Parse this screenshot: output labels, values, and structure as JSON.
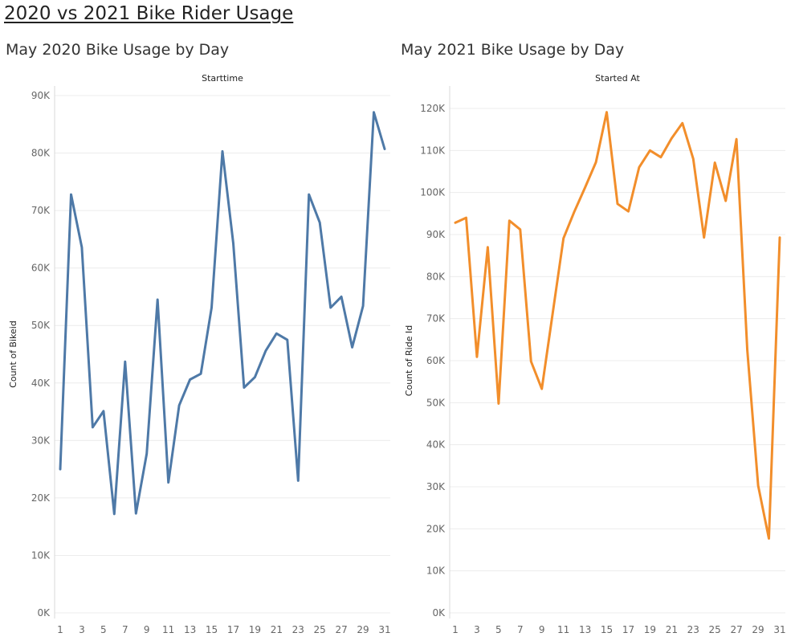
{
  "dashboard": {
    "title": "2020 vs 2021 Bike Rider Usage"
  },
  "chart_data": [
    {
      "type": "line",
      "title": "May 2020 Bike Usage by Day",
      "column_header": "Starttime",
      "ylabel": "Count of Bikeid",
      "color": "#4e79a7",
      "ylim": [
        0,
        90000
      ],
      "yticks": [
        0,
        10000,
        20000,
        30000,
        40000,
        50000,
        60000,
        70000,
        80000,
        90000
      ],
      "ytick_labels": [
        "0K",
        "10K",
        "20K",
        "30K",
        "40K",
        "50K",
        "60K",
        "70K",
        "80K",
        "90K"
      ],
      "xticks": [
        "1",
        "3",
        "5",
        "7",
        "9",
        "11",
        "13",
        "15",
        "17",
        "19",
        "21",
        "23",
        "25",
        "27",
        "29",
        "31"
      ],
      "x": [
        1,
        2,
        3,
        4,
        5,
        6,
        7,
        8,
        9,
        10,
        11,
        12,
        13,
        14,
        15,
        16,
        17,
        18,
        19,
        20,
        21,
        22,
        23,
        24,
        25,
        26,
        27,
        28,
        29,
        30,
        31
      ],
      "values": [
        25000,
        72800,
        63600,
        32300,
        35100,
        17200,
        43700,
        17300,
        27700,
        54500,
        22700,
        36100,
        40600,
        41600,
        53100,
        80300,
        64300,
        39200,
        41000,
        45600,
        48600,
        47500,
        23000,
        72800,
        67900,
        53100,
        55000,
        46200,
        53400,
        87100,
        80700
      ]
    },
    {
      "type": "line",
      "title": "May 2021 Bike Usage by Day",
      "column_header": "Started At",
      "ylabel": "Count of Ride Id",
      "color": "#f28e2b",
      "ylim": [
        0,
        120000
      ],
      "yticks": [
        0,
        10000,
        20000,
        30000,
        40000,
        50000,
        60000,
        70000,
        80000,
        90000,
        100000,
        110000,
        120000
      ],
      "ytick_labels": [
        "0K",
        "10K",
        "20K",
        "30K",
        "40K",
        "50K",
        "60K",
        "70K",
        "80K",
        "90K",
        "100K",
        "110K",
        "120K"
      ],
      "xticks": [
        "1",
        "3",
        "5",
        "7",
        "9",
        "11",
        "13",
        "15",
        "17",
        "19",
        "21",
        "23",
        "25",
        "27",
        "29",
        "31"
      ],
      "x": [
        1,
        2,
        3,
        4,
        5,
        6,
        7,
        8,
        9,
        10,
        11,
        12,
        13,
        14,
        15,
        16,
        17,
        18,
        19,
        20,
        21,
        22,
        23,
        24,
        25,
        26,
        27,
        28,
        29,
        30,
        31
      ],
      "values": [
        92800,
        94000,
        60900,
        87000,
        49800,
        93300,
        91200,
        59800,
        53300,
        71200,
        89100,
        95400,
        101200,
        107200,
        119100,
        97300,
        95500,
        106000,
        110000,
        108400,
        112900,
        116500,
        108000,
        89300,
        107100,
        98000,
        112700,
        62500,
        30300,
        17700,
        89300
      ]
    }
  ]
}
